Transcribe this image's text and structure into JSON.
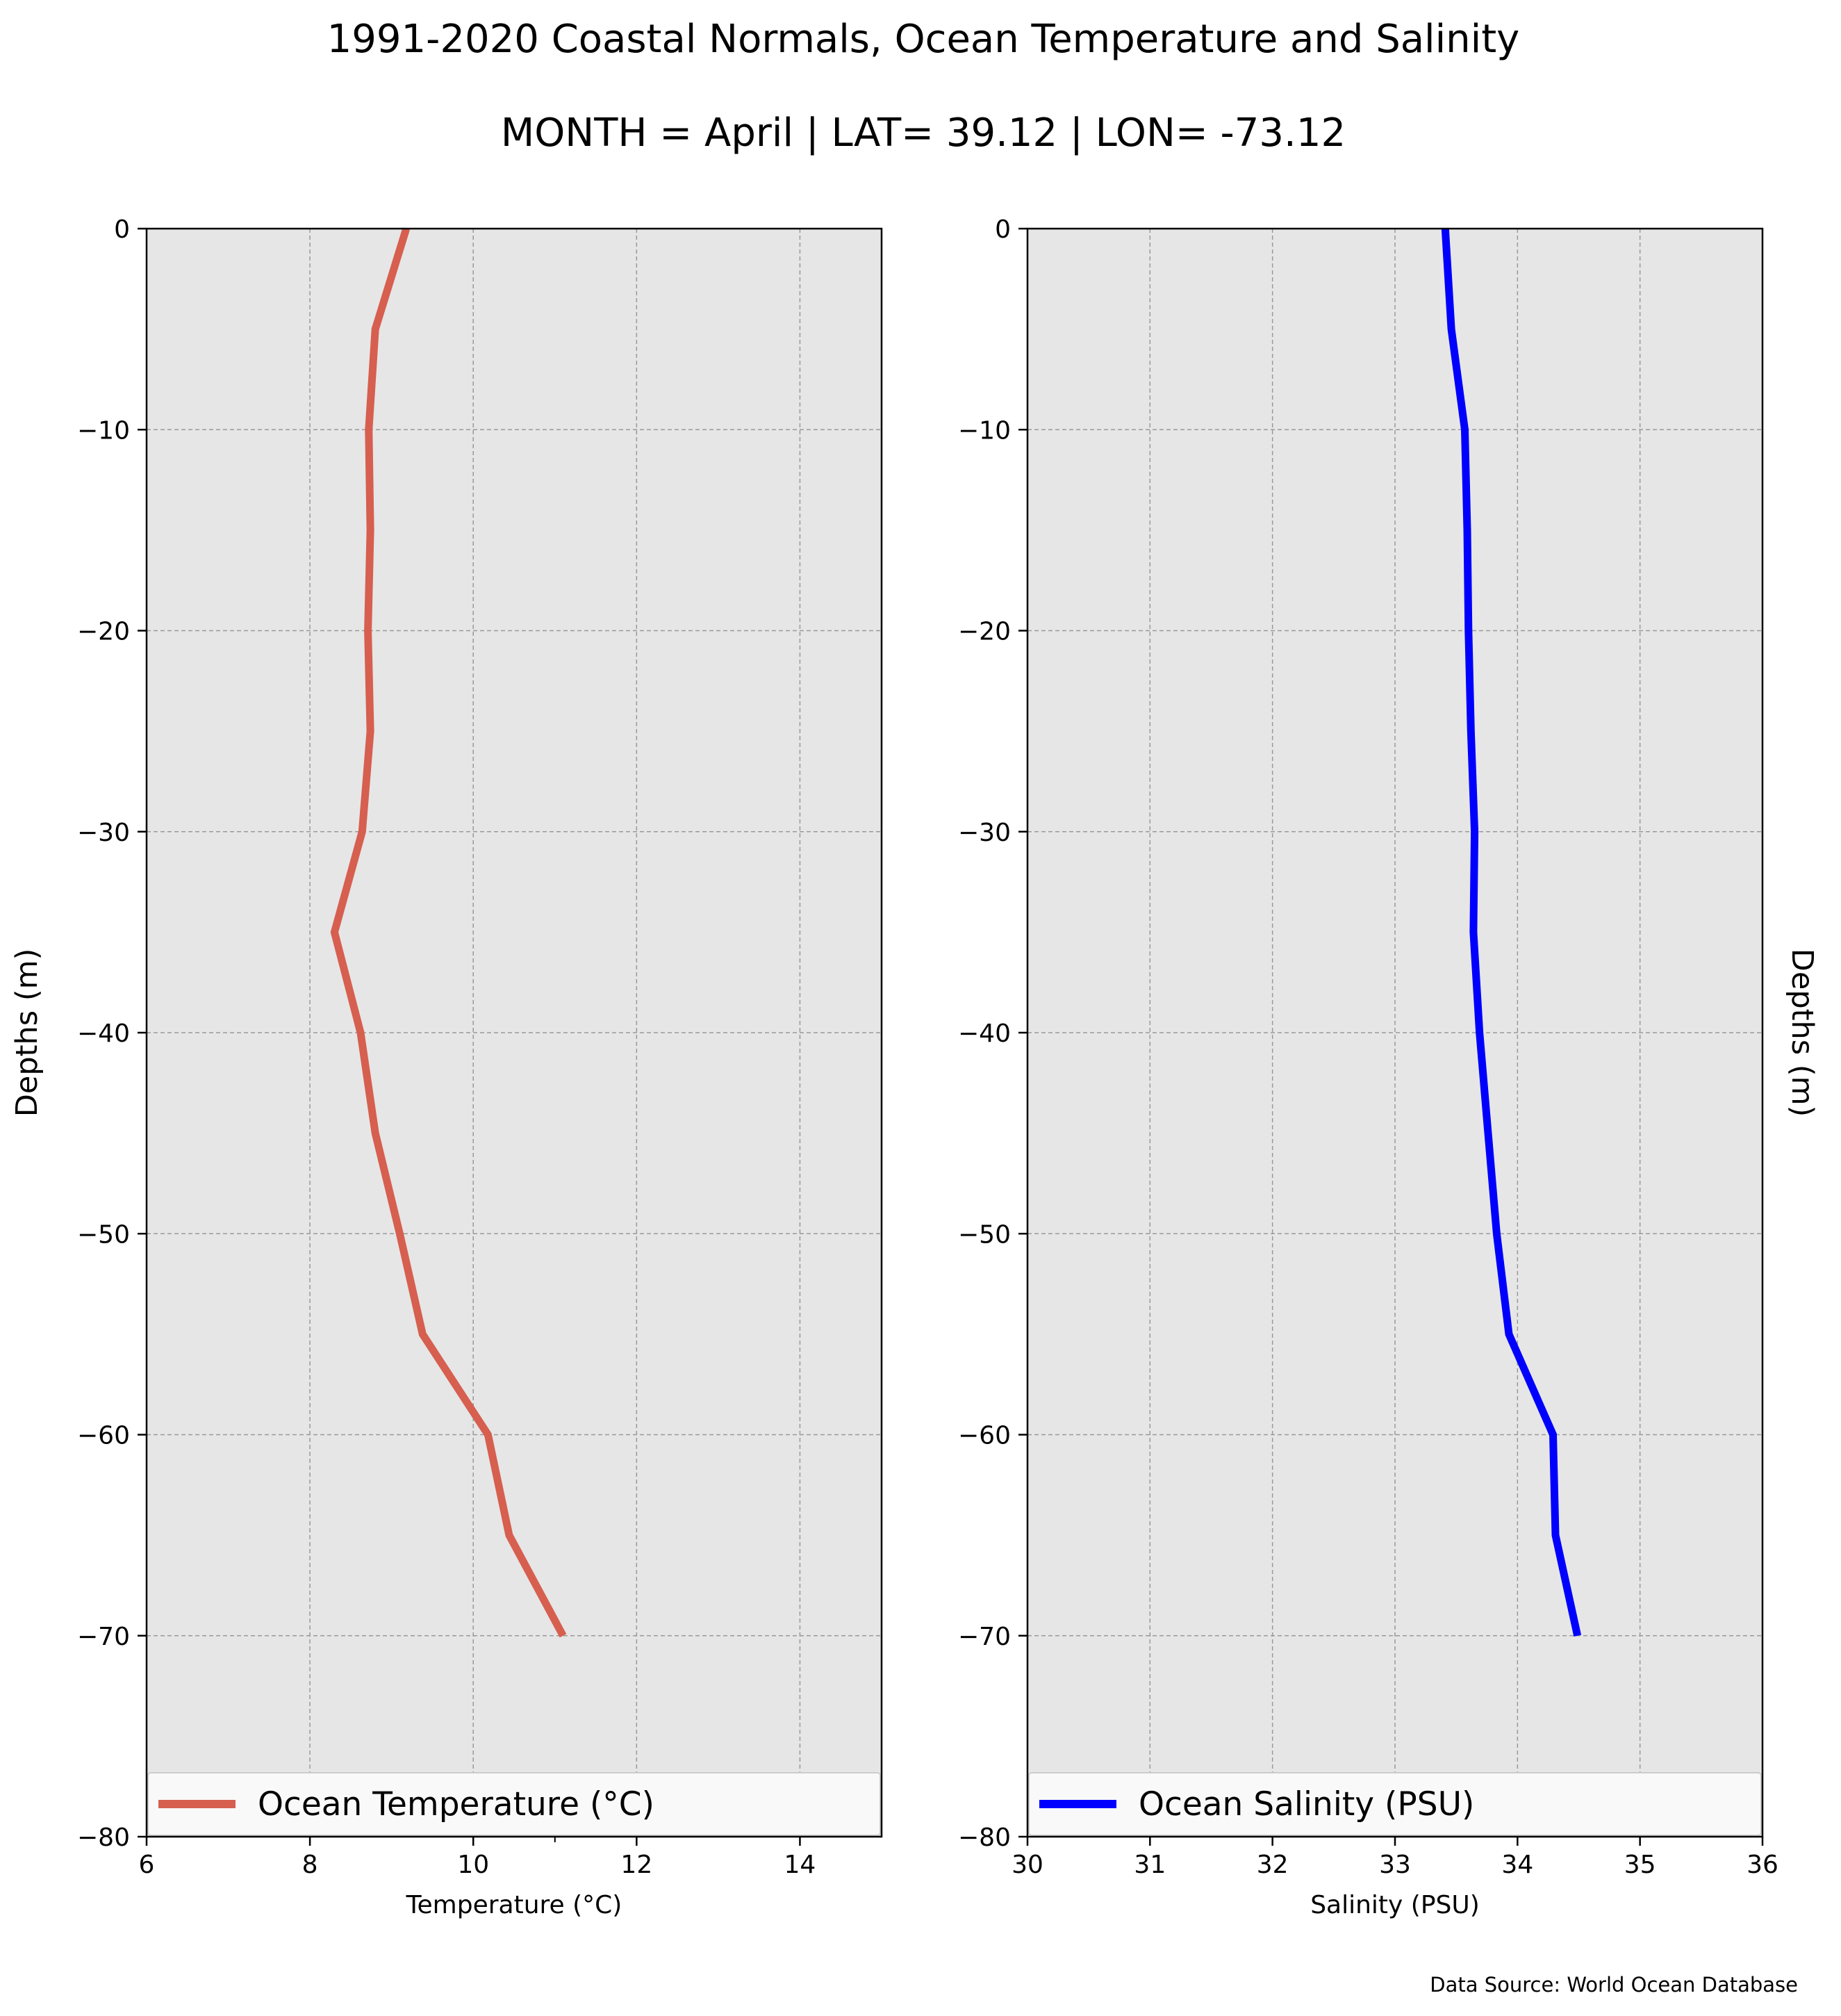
{
  "title": "1991-2020 Coastal Normals, Ocean Temperature and Salinity",
  "subtitle": "MONTH = April | LAT= 39.12 | LON= -73.12",
  "source_note": "Data Source: World Ocean Database",
  "colors": {
    "plot_background": "#e6e6e6",
    "grid": "#999999",
    "temperature_line": "#d65f4f",
    "salinity_line": "#0000ff"
  },
  "chart_data": [
    {
      "type": "line",
      "xlabel": "Temperature (°C)",
      "ylabel": "Depths (m)",
      "xlim": [
        6,
        15
      ],
      "ylim": [
        -80,
        0
      ],
      "xticks": [
        6,
        8,
        10,
        12,
        14
      ],
      "xtick_labels": [
        "6",
        "8",
        "10",
        "12",
        "14"
      ],
      "yticks": [
        0,
        -10,
        -20,
        -30,
        -40,
        -50,
        -60,
        -70,
        -80
      ],
      "ytick_labels": [
        "0",
        "−10",
        "−20",
        "−30",
        "−40",
        "−50",
        "−60",
        "−70",
        "−80"
      ],
      "grid": true,
      "legend_position": "lower center",
      "series": [
        {
          "name": "Ocean Temperature (°C)",
          "color": "#d65f4f",
          "x": [
            9.18,
            8.8,
            8.72,
            8.74,
            8.71,
            8.74,
            8.64,
            8.3,
            8.62,
            8.8,
            9.1,
            9.38,
            10.18,
            10.44,
            11.1
          ],
          "y": [
            0,
            -5,
            -10,
            -15,
            -20,
            -25,
            -30,
            -35,
            -40,
            -45,
            -50,
            -55,
            -60,
            -65,
            -70
          ]
        }
      ]
    },
    {
      "type": "line",
      "xlabel": "Salinity (PSU)",
      "ylabel": "Depths (m)",
      "xlim": [
        30,
        36
      ],
      "ylim": [
        -80,
        0
      ],
      "xticks": [
        30,
        31,
        32,
        33,
        34,
        35,
        36
      ],
      "xtick_labels": [
        "30",
        "31",
        "32",
        "33",
        "34",
        "35",
        "36"
      ],
      "yticks": [
        0,
        -10,
        -20,
        -30,
        -40,
        -50,
        -60,
        -70,
        -80
      ],
      "ytick_labels": [
        "0",
        "−10",
        "−20",
        "−30",
        "−40",
        "−50",
        "−60",
        "−70",
        "−80"
      ],
      "grid": true,
      "legend_position": "lower center",
      "series": [
        {
          "name": "Ocean Salinity (PSU)",
          "color": "#0000ff",
          "x": [
            33.41,
            33.46,
            33.57,
            33.59,
            33.6,
            33.62,
            33.65,
            33.64,
            33.69,
            33.76,
            33.83,
            33.93,
            34.29,
            34.31,
            34.49
          ],
          "y": [
            0,
            -5,
            -10,
            -15,
            -20,
            -25,
            -30,
            -35,
            -40,
            -45,
            -50,
            -55,
            -60,
            -65,
            -70
          ]
        }
      ]
    }
  ]
}
